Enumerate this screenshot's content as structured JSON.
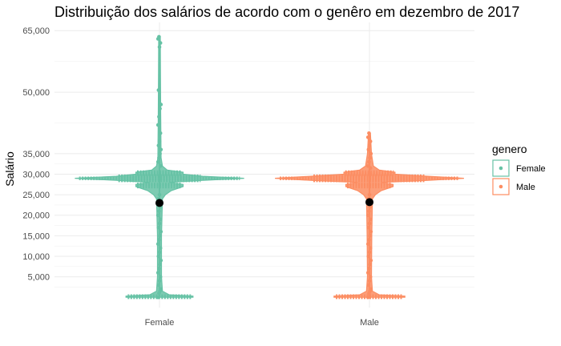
{
  "chart_data": {
    "type": "violin",
    "title": "Distribuição dos salários de acordo com o genêro em dezembro de 2017",
    "xlabel": "",
    "ylabel": "Salário",
    "categories": [
      "Female",
      "Male"
    ],
    "ylim": [
      -2500,
      67000
    ],
    "y_ticks": [
      5000,
      10000,
      15000,
      20000,
      25000,
      30000,
      35000,
      50000,
      65000
    ],
    "y_tick_labels": [
      "5,000",
      "10,000",
      "15,000",
      "20,000",
      "25,000",
      "30,000",
      "35,000",
      "50,000",
      "65,000"
    ],
    "grid": true,
    "legend": {
      "title": "genero",
      "position": "right",
      "entries": [
        "Female",
        "Male"
      ]
    },
    "colors": {
      "Female": "#66c2a5",
      "Male": "#fc8d62",
      "mean": "#000000"
    },
    "series": [
      {
        "name": "Female",
        "mean": 23000,
        "max": 63500,
        "density_profile": [
          [
            0,
            0.17
          ],
          [
            300,
            0.17
          ],
          [
            600,
            0.05
          ],
          [
            1500,
            0.015
          ],
          [
            5000,
            0.01
          ],
          [
            15000,
            0.01
          ],
          [
            24000,
            0.015
          ],
          [
            25000,
            0.03
          ],
          [
            26000,
            0.06
          ],
          [
            27000,
            0.12
          ],
          [
            27500,
            0.12
          ],
          [
            28000,
            0.05
          ],
          [
            28500,
            0.22
          ],
          [
            29000,
            0.43
          ],
          [
            29500,
            0.22
          ],
          [
            30000,
            0.12
          ],
          [
            30500,
            0.12
          ],
          [
            31000,
            0.04
          ],
          [
            32000,
            0.015
          ],
          [
            34000,
            0.008
          ],
          [
            45000,
            0.006
          ],
          [
            55000,
            0.005
          ],
          [
            63500,
            0.004
          ]
        ],
        "outlier_points": [
          0,
          1000,
          1500,
          2000,
          3000,
          4000,
          5000,
          6000,
          7000,
          8000,
          9000,
          10000,
          11000,
          12000,
          13000,
          14000,
          15000,
          16000,
          17000,
          18000,
          19000,
          20000,
          21000,
          22000,
          23000,
          24000,
          25000,
          32000,
          33000,
          34000,
          35000,
          36000,
          37000,
          38000,
          40000,
          42000,
          44000,
          46000,
          47000,
          50500,
          61000,
          62000,
          63000,
          63500
        ]
      },
      {
        "name": "Male",
        "mean": 23200,
        "max": 40000,
        "density_profile": [
          [
            0,
            0.18
          ],
          [
            300,
            0.18
          ],
          [
            600,
            0.05
          ],
          [
            1500,
            0.015
          ],
          [
            5000,
            0.01
          ],
          [
            15000,
            0.012
          ],
          [
            24000,
            0.015
          ],
          [
            25000,
            0.03
          ],
          [
            26000,
            0.06
          ],
          [
            27000,
            0.12
          ],
          [
            27500,
            0.12
          ],
          [
            28000,
            0.06
          ],
          [
            28500,
            0.3
          ],
          [
            29000,
            0.48
          ],
          [
            29500,
            0.3
          ],
          [
            30000,
            0.13
          ],
          [
            30500,
            0.13
          ],
          [
            31000,
            0.05
          ],
          [
            32000,
            0.02
          ],
          [
            35000,
            0.01
          ],
          [
            40000,
            0.005
          ]
        ],
        "outlier_points": [
          0,
          1000,
          1500,
          2000,
          3000,
          4000,
          5000,
          6000,
          7000,
          8000,
          9000,
          10000,
          11000,
          12000,
          13000,
          14000,
          15000,
          16000,
          17000,
          18000,
          19000,
          20000,
          21000,
          22000,
          23000,
          24000,
          25000,
          31500,
          32000,
          33000,
          34000,
          35000,
          36000,
          37000,
          38000,
          39000,
          40000
        ]
      }
    ]
  }
}
